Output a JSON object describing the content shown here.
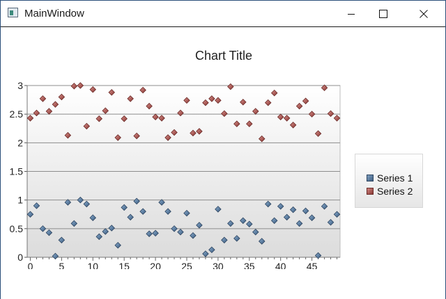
{
  "window": {
    "title": "MainWindow",
    "controls": [
      "minimize-icon",
      "maximize-icon",
      "close-icon"
    ]
  },
  "colors": {
    "series1": "#4f7398",
    "series2": "#a8504b",
    "window_border": "#2b4f7a"
  },
  "chart_data": {
    "type": "scatter",
    "title": "Chart Title",
    "xlabel": "",
    "ylabel": "",
    "xlim": [
      -0.5,
      49.5
    ],
    "ylim": [
      0,
      3
    ],
    "x_ticks": [
      "0",
      "5",
      "10",
      "15",
      "20",
      "25",
      "30",
      "35",
      "40",
      "45"
    ],
    "y_ticks": [
      "0",
      "0.5",
      "1",
      "1.5",
      "2",
      "2.5",
      "3"
    ],
    "legend_position": "right",
    "grid": true,
    "series": [
      {
        "name": "Series 1",
        "x": [
          0,
          1,
          2,
          3,
          4,
          5,
          6,
          7,
          8,
          9,
          10,
          11,
          12,
          13,
          14,
          15,
          16,
          17,
          18,
          19,
          20,
          21,
          22,
          23,
          24,
          25,
          26,
          27,
          28,
          29,
          30,
          31,
          32,
          33,
          34,
          35,
          36,
          37,
          38,
          39,
          40,
          41,
          42,
          43,
          44,
          45,
          46,
          47,
          48,
          49
        ],
        "y": [
          0.75,
          0.9,
          0.5,
          0.43,
          0.02,
          0.3,
          0.96,
          0.59,
          1.0,
          0.93,
          0.69,
          0.36,
          0.45,
          0.51,
          0.21,
          0.87,
          0.7,
          0.98,
          0.8,
          0.41,
          0.42,
          0.96,
          0.8,
          0.5,
          0.44,
          0.77,
          0.38,
          0.56,
          0.06,
          0.13,
          0.84,
          0.3,
          0.59,
          0.33,
          0.64,
          0.58,
          0.44,
          0.28,
          0.93,
          0.64,
          0.89,
          0.7,
          0.83,
          0.59,
          0.81,
          0.69,
          0.03,
          0.89,
          0.61,
          0.75
        ]
      },
      {
        "name": "Series 2",
        "x": [
          0,
          1,
          2,
          3,
          4,
          5,
          6,
          7,
          8,
          9,
          10,
          11,
          12,
          13,
          14,
          15,
          16,
          17,
          18,
          19,
          20,
          21,
          22,
          23,
          24,
          25,
          26,
          27,
          28,
          29,
          30,
          31,
          32,
          33,
          34,
          35,
          36,
          37,
          38,
          39,
          40,
          41,
          42,
          43,
          44,
          45,
          46,
          47,
          48,
          49
        ],
        "y": [
          2.43,
          2.52,
          2.77,
          2.55,
          2.67,
          2.8,
          2.13,
          2.99,
          3.0,
          2.29,
          2.93,
          2.42,
          2.56,
          2.88,
          2.09,
          2.42,
          2.77,
          2.12,
          2.92,
          2.64,
          2.45,
          2.43,
          2.09,
          2.18,
          2.52,
          2.74,
          2.17,
          2.2,
          2.7,
          2.77,
          2.74,
          2.51,
          2.98,
          2.33,
          2.71,
          2.33,
          2.55,
          2.07,
          2.7,
          2.87,
          2.45,
          2.43,
          2.31,
          2.64,
          2.73,
          2.5,
          2.16,
          2.96,
          2.51,
          2.43
        ]
      }
    ]
  }
}
